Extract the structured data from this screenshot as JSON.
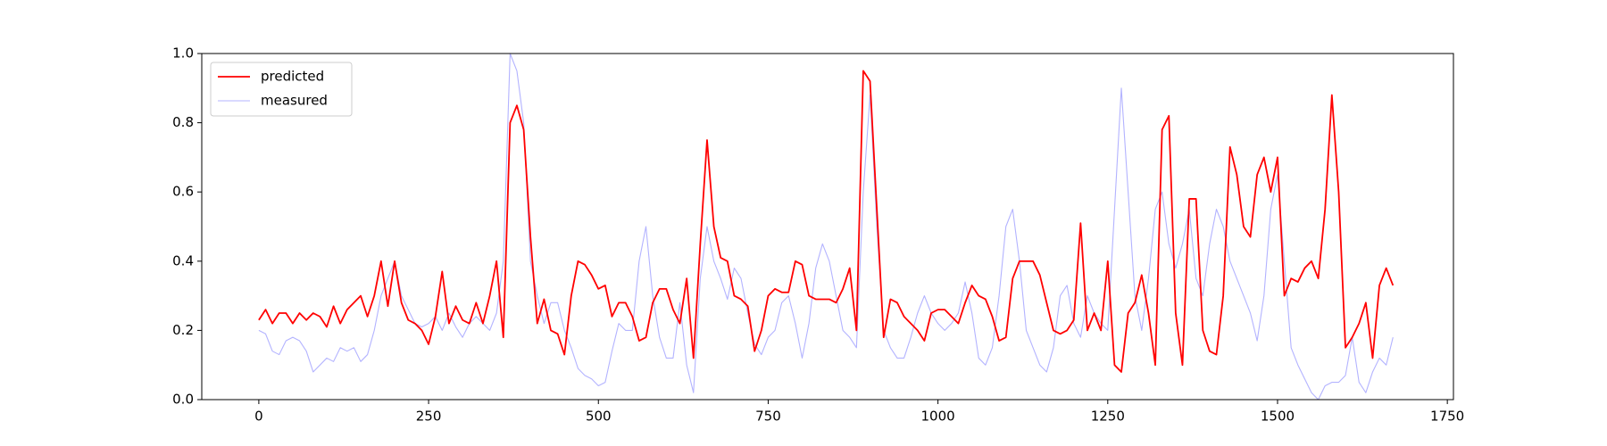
{
  "chart_data": {
    "type": "line",
    "x": [
      0,
      10,
      20,
      30,
      40,
      50,
      60,
      70,
      80,
      90,
      100,
      110,
      120,
      130,
      140,
      150,
      160,
      170,
      180,
      190,
      200,
      210,
      220,
      230,
      240,
      250,
      260,
      270,
      280,
      290,
      300,
      310,
      320,
      330,
      340,
      350,
      360,
      370,
      380,
      390,
      400,
      410,
      420,
      430,
      440,
      450,
      460,
      470,
      480,
      490,
      500,
      510,
      520,
      530,
      540,
      550,
      560,
      570,
      580,
      590,
      600,
      610,
      620,
      630,
      640,
      650,
      660,
      670,
      680,
      690,
      700,
      710,
      720,
      730,
      740,
      750,
      760,
      770,
      780,
      790,
      800,
      810,
      820,
      830,
      840,
      850,
      860,
      870,
      880,
      890,
      900,
      910,
      920,
      930,
      940,
      950,
      960,
      970,
      980,
      990,
      1000,
      1010,
      1020,
      1030,
      1040,
      1050,
      1060,
      1070,
      1080,
      1090,
      1100,
      1110,
      1120,
      1130,
      1140,
      1150,
      1160,
      1170,
      1180,
      1190,
      1200,
      1210,
      1220,
      1230,
      1240,
      1250,
      1260,
      1270,
      1280,
      1290,
      1300,
      1310,
      1320,
      1330,
      1340,
      1350,
      1360,
      1370,
      1380,
      1390,
      1400,
      1410,
      1420,
      1430,
      1440,
      1450,
      1460,
      1470,
      1480,
      1490,
      1500,
      1510,
      1520,
      1530,
      1540,
      1550,
      1560,
      1570,
      1580,
      1590,
      1600,
      1610,
      1620,
      1630,
      1640,
      1650,
      1660,
      1670
    ],
    "series": [
      {
        "name": "predicted",
        "color": "#ff0000",
        "values": [
          0.23,
          0.26,
          0.22,
          0.25,
          0.25,
          0.22,
          0.25,
          0.23,
          0.25,
          0.24,
          0.21,
          0.27,
          0.22,
          0.26,
          0.28,
          0.3,
          0.24,
          0.3,
          0.4,
          0.27,
          0.4,
          0.28,
          0.23,
          0.22,
          0.2,
          0.16,
          0.24,
          0.37,
          0.22,
          0.27,
          0.23,
          0.22,
          0.28,
          0.22,
          0.3,
          0.4,
          0.18,
          0.8,
          0.85,
          0.78,
          0.47,
          0.22,
          0.29,
          0.2,
          0.19,
          0.13,
          0.3,
          0.4,
          0.39,
          0.36,
          0.32,
          0.33,
          0.24,
          0.28,
          0.28,
          0.24,
          0.17,
          0.18,
          0.28,
          0.32,
          0.32,
          0.26,
          0.22,
          0.35,
          0.12,
          0.45,
          0.75,
          0.5,
          0.41,
          0.4,
          0.3,
          0.29,
          0.27,
          0.14,
          0.2,
          0.3,
          0.32,
          0.31,
          0.31,
          0.4,
          0.39,
          0.3,
          0.29,
          0.29,
          0.29,
          0.28,
          0.32,
          0.38,
          0.2,
          0.95,
          0.92,
          0.55,
          0.18,
          0.29,
          0.28,
          0.24,
          0.22,
          0.2,
          0.17,
          0.25,
          0.26,
          0.26,
          0.24,
          0.22,
          0.28,
          0.33,
          0.3,
          0.29,
          0.24,
          0.17,
          0.18,
          0.35,
          0.4,
          0.4,
          0.4,
          0.36,
          0.28,
          0.2,
          0.19,
          0.2,
          0.23,
          0.51,
          0.2,
          0.25,
          0.2,
          0.4,
          0.1,
          0.08,
          0.25,
          0.28,
          0.36,
          0.25,
          0.1,
          0.78,
          0.82,
          0.25,
          0.1,
          0.58,
          0.58,
          0.2,
          0.14,
          0.13,
          0.3,
          0.73,
          0.65,
          0.5,
          0.47,
          0.65,
          0.7,
          0.6,
          0.7,
          0.3,
          0.35,
          0.34,
          0.38,
          0.4,
          0.35,
          0.55,
          0.88,
          0.6,
          0.15,
          0.18,
          0.22,
          0.28,
          0.12,
          0.33,
          0.38,
          0.33
        ]
      },
      {
        "name": "measured",
        "color": "#b3b3ff",
        "values": [
          0.2,
          0.19,
          0.14,
          0.13,
          0.17,
          0.18,
          0.17,
          0.14,
          0.08,
          0.1,
          0.12,
          0.11,
          0.15,
          0.14,
          0.15,
          0.11,
          0.13,
          0.2,
          0.3,
          0.35,
          0.4,
          0.3,
          0.26,
          0.22,
          0.21,
          0.22,
          0.24,
          0.2,
          0.25,
          0.21,
          0.18,
          0.22,
          0.24,
          0.22,
          0.2,
          0.25,
          0.4,
          1.0,
          0.95,
          0.8,
          0.4,
          0.3,
          0.22,
          0.28,
          0.28,
          0.2,
          0.15,
          0.09,
          0.07,
          0.06,
          0.04,
          0.05,
          0.14,
          0.22,
          0.2,
          0.2,
          0.4,
          0.5,
          0.3,
          0.18,
          0.12,
          0.12,
          0.28,
          0.1,
          0.02,
          0.35,
          0.5,
          0.4,
          0.35,
          0.29,
          0.38,
          0.35,
          0.25,
          0.16,
          0.13,
          0.18,
          0.2,
          0.28,
          0.3,
          0.22,
          0.12,
          0.22,
          0.38,
          0.45,
          0.4,
          0.3,
          0.2,
          0.18,
          0.15,
          0.6,
          0.88,
          0.5,
          0.2,
          0.15,
          0.12,
          0.12,
          0.18,
          0.25,
          0.3,
          0.25,
          0.22,
          0.2,
          0.22,
          0.25,
          0.34,
          0.25,
          0.12,
          0.1,
          0.15,
          0.3,
          0.5,
          0.55,
          0.4,
          0.2,
          0.15,
          0.1,
          0.08,
          0.15,
          0.3,
          0.33,
          0.22,
          0.18,
          0.3,
          0.25,
          0.22,
          0.2,
          0.55,
          0.9,
          0.6,
          0.3,
          0.2,
          0.35,
          0.55,
          0.6,
          0.45,
          0.38,
          0.45,
          0.55,
          0.35,
          0.3,
          0.45,
          0.55,
          0.5,
          0.4,
          0.35,
          0.3,
          0.25,
          0.17,
          0.3,
          0.55,
          0.65,
          0.4,
          0.15,
          0.1,
          0.06,
          0.02,
          0.0,
          0.04,
          0.05,
          0.05,
          0.07,
          0.18,
          0.05,
          0.02,
          0.08,
          0.12,
          0.1,
          0.18
        ]
      }
    ],
    "xlim": [
      -84,
      1759
    ],
    "xticks": [
      0,
      250,
      500,
      750,
      1000,
      1250,
      1500,
      1750
    ],
    "ylim": [
      0,
      1
    ],
    "yticks": [
      {
        "value": 0,
        "label": "0.0"
      },
      0.2,
      0.4,
      0.6,
      0.8,
      {
        "value": 1,
        "label": "1.0"
      }
    ],
    "grid": false,
    "legend": "upper left"
  }
}
